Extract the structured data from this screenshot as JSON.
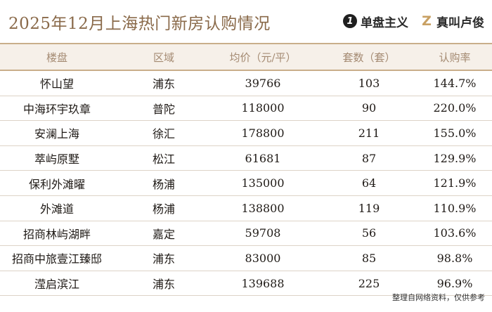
{
  "header": {
    "title": "2025年12月上海热门新房认购情况",
    "brand_left": {
      "mark": "1",
      "name": "单盘主义"
    },
    "brand_right": {
      "mark": "Z",
      "name": "真叫卢俊"
    }
  },
  "chart_data": {
    "type": "table",
    "columns": [
      "楼盘",
      "区域",
      "均价（元/平）",
      "套数（套）",
      "认购率"
    ],
    "rows": [
      [
        "怀山望",
        "浦东",
        "39766",
        "103",
        "144.7%"
      ],
      [
        "中海环宇玖章",
        "普陀",
        "118000",
        "90",
        "220.0%"
      ],
      [
        "安澜上海",
        "徐汇",
        "178800",
        "211",
        "155.0%"
      ],
      [
        "萃屿原墅",
        "松江",
        "61681",
        "87",
        "129.9%"
      ],
      [
        "保利外滩曜",
        "杨浦",
        "135000",
        "64",
        "121.9%"
      ],
      [
        "外滩道",
        "杨浦",
        "138800",
        "119",
        "110.9%"
      ],
      [
        "招商林屿湖畔",
        "嘉定",
        "59708",
        "56",
        "103.6%"
      ],
      [
        "招商中旅壹江臻邸",
        "浦东",
        "83000",
        "85",
        "98.8%"
      ],
      [
        "滢启滨江",
        "浦东",
        "139688",
        "225",
        "96.9%"
      ]
    ]
  },
  "footer": {
    "source": "整理自网络资料，仅供参考"
  },
  "colors": {
    "title": "#8a6a4a",
    "header_bg": "#f6f0e9",
    "rule": "#c9ae8a",
    "header_text": "#a48a72"
  }
}
